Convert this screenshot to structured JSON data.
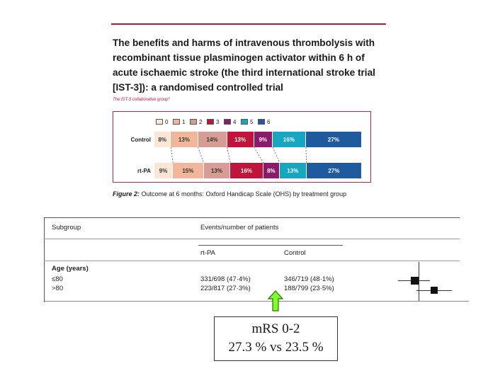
{
  "paper": {
    "title": "The benefits and harms of intravenous thrombolysis with recombinant tissue plasminogen activator within 6 h of acute ischaemic stroke (the third international stroke trial [IST-3]): a randomised controlled trial",
    "authors": "The IST-3 collaborative group*"
  },
  "figure": {
    "legend": [
      {
        "label": "0",
        "color": "#fbe6d6"
      },
      {
        "label": "1",
        "color": "#f2b79a"
      },
      {
        "label": "2",
        "color": "#d79d95"
      },
      {
        "label": "3",
        "color": "#c0143c"
      },
      {
        "label": "4",
        "color": "#8b1a6b"
      },
      {
        "label": "5",
        "color": "#17a6c2"
      },
      {
        "label": "6",
        "color": "#1f5a9e"
      }
    ],
    "rows": [
      {
        "label": "Control",
        "values": [
          8,
          13,
          14,
          13,
          9,
          16,
          27
        ],
        "labels": [
          "8%",
          "13%",
          "14%",
          "13%",
          "9%",
          "16%",
          "27%"
        ]
      },
      {
        "label": "rt-PA",
        "values": [
          9,
          15,
          13,
          16,
          8,
          13,
          27
        ],
        "labels": [
          "9%",
          "15%",
          "13%",
          "16%",
          "8%",
          "13%",
          "27%"
        ]
      }
    ],
    "caption_lead": "Figure 2:",
    "caption_rest": " Outcome at 6 months: Oxford Handicap Scale (OHS) by treatment group"
  },
  "table": {
    "col_subgroup": "Subgroup",
    "col_events": "Events/number of patients",
    "col_rtpa": "rt-PA",
    "col_control": "Control",
    "group_label": "Age (years)",
    "rows": [
      {
        "label": "≤80",
        "rtpa": "331/698 (47·4%)",
        "control": "346/719 (48·1%)"
      },
      {
        "label": ">80",
        "rtpa": "223/817 (27·3%)",
        "control": "188/799 (23·5%)"
      }
    ]
  },
  "callout": {
    "line1": "mRS 0-2",
    "line2": "27.3 % vs 23.5 %"
  }
}
